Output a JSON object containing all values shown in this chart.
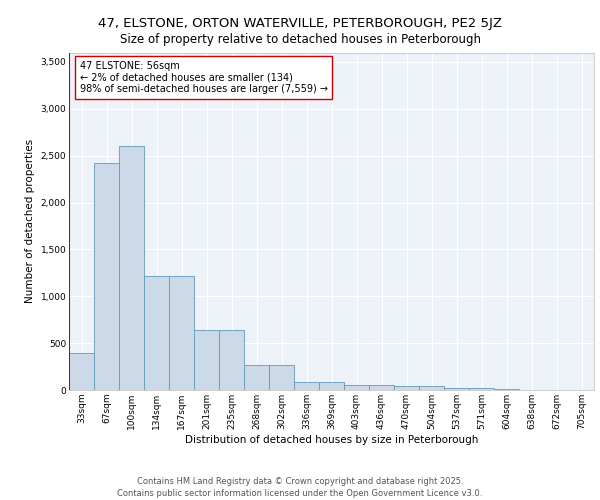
{
  "title1": "47, ELSTONE, ORTON WATERVILLE, PETERBOROUGH, PE2 5JZ",
  "title2": "Size of property relative to detached houses in Peterborough",
  "xlabel": "Distribution of detached houses by size in Peterborough",
  "ylabel": "Number of detached properties",
  "categories": [
    "33sqm",
    "67sqm",
    "100sqm",
    "134sqm",
    "167sqm",
    "201sqm",
    "235sqm",
    "268sqm",
    "302sqm",
    "336sqm",
    "369sqm",
    "403sqm",
    "436sqm",
    "470sqm",
    "504sqm",
    "537sqm",
    "571sqm",
    "604sqm",
    "638sqm",
    "672sqm",
    "705sqm"
  ],
  "bar_values": [
    390,
    2420,
    2600,
    1220,
    1220,
    640,
    640,
    270,
    270,
    90,
    90,
    55,
    55,
    40,
    40,
    25,
    25,
    10,
    0,
    0,
    0
  ],
  "bar_color": "#ccd9e8",
  "bar_edge_color": "#6699bb",
  "marker_color": "#cc0000",
  "annotation_text": "47 ELSTONE: 56sqm\n← 2% of detached houses are smaller (134)\n98% of semi-detached houses are larger (7,559) →",
  "annotation_box_color": "#ffffff",
  "annotation_box_edge": "#cc0000",
  "ylim": [
    0,
    3600
  ],
  "yticks": [
    0,
    500,
    1000,
    1500,
    2000,
    2500,
    3000,
    3500
  ],
  "bg_color": "#edf2f9",
  "grid_color": "#ffffff",
  "footer": "Contains HM Land Registry data © Crown copyright and database right 2025.\nContains public sector information licensed under the Open Government Licence v3.0.",
  "title1_fontsize": 9.5,
  "title2_fontsize": 8.5,
  "axis_label_fontsize": 7.5,
  "tick_fontsize": 6.5,
  "annotation_fontsize": 7,
  "footer_fontsize": 6
}
